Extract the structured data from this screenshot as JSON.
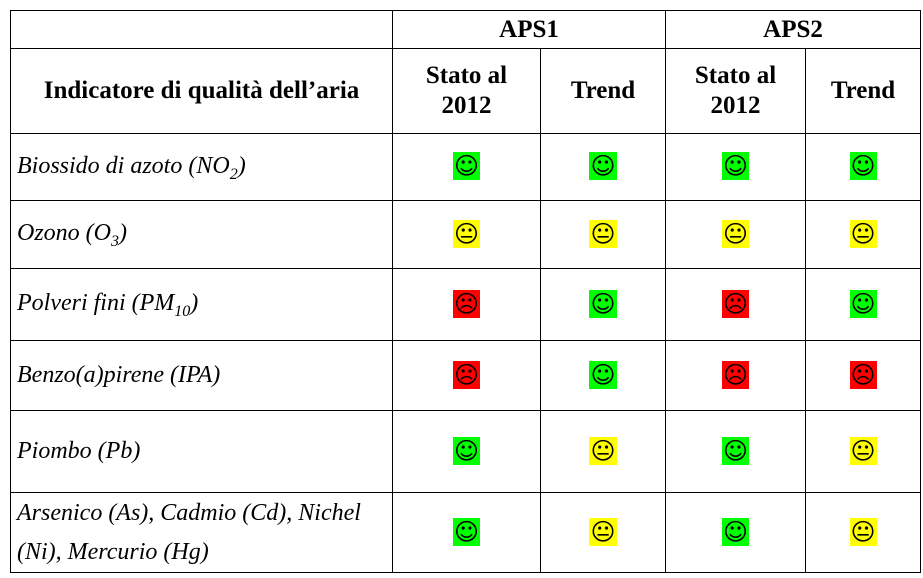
{
  "table": {
    "groups": [
      "APS1",
      "APS2"
    ],
    "header": [
      "Indicatore di qualità dell’aria",
      "Stato al 2012",
      "Trend",
      "Stato al 2012",
      "Trend"
    ],
    "rows": [
      {
        "label": {
          "text": "Biossido di azoto (NO",
          "sub": "2",
          "after": ")"
        },
        "cells": [
          {
            "symbol": "☺",
            "color": "#00ff00"
          },
          {
            "symbol": "☺",
            "color": "#00ff00"
          },
          {
            "symbol": "☺",
            "color": "#00ff00"
          },
          {
            "symbol": "☺",
            "color": "#00ff00"
          }
        ]
      },
      {
        "label": {
          "text": "Ozono (O",
          "sub": "3",
          "after": ")"
        },
        "cells": [
          {
            "symbol": "😐",
            "color": "#ffff00"
          },
          {
            "symbol": "😐",
            "color": "#ffff00"
          },
          {
            "symbol": "😐",
            "color": "#ffff00"
          },
          {
            "symbol": "😐",
            "color": "#ffff00"
          }
        ]
      },
      {
        "label": {
          "text": "Polveri fini (PM",
          "sub": "10",
          "after": ")"
        },
        "cells": [
          {
            "symbol": "☹",
            "color": "#ff0000"
          },
          {
            "symbol": "☺",
            "color": "#00ff00"
          },
          {
            "symbol": "☹",
            "color": "#ff0000"
          },
          {
            "symbol": "☺",
            "color": "#00ff00"
          }
        ]
      },
      {
        "label": {
          "text": "Benzo(a)pirene (IPA)"
        },
        "cells": [
          {
            "symbol": "☹",
            "color": "#ff0000"
          },
          {
            "symbol": "☺",
            "color": "#00ff00"
          },
          {
            "symbol": "☹",
            "color": "#ff0000"
          },
          {
            "symbol": "☹",
            "color": "#ff0000"
          }
        ]
      },
      {
        "label": {
          "text": "Piombo (Pb)"
        },
        "cells": [
          {
            "symbol": "☺",
            "color": "#00ff00"
          },
          {
            "symbol": "😐",
            "color": "#ffff00"
          },
          {
            "symbol": "☺",
            "color": "#00ff00"
          },
          {
            "symbol": "😐",
            "color": "#ffff00"
          }
        ]
      },
      {
        "label": {
          "text": "Arsenico (As), Cadmio (Cd), Nichel (Ni), Mercurio (Hg)"
        },
        "cells": [
          {
            "symbol": "☺",
            "color": "#00ff00"
          },
          {
            "symbol": "😐",
            "color": "#ffff00"
          },
          {
            "symbol": "☺",
            "color": "#00ff00"
          },
          {
            "symbol": "😐",
            "color": "#ffff00"
          }
        ]
      }
    ]
  }
}
